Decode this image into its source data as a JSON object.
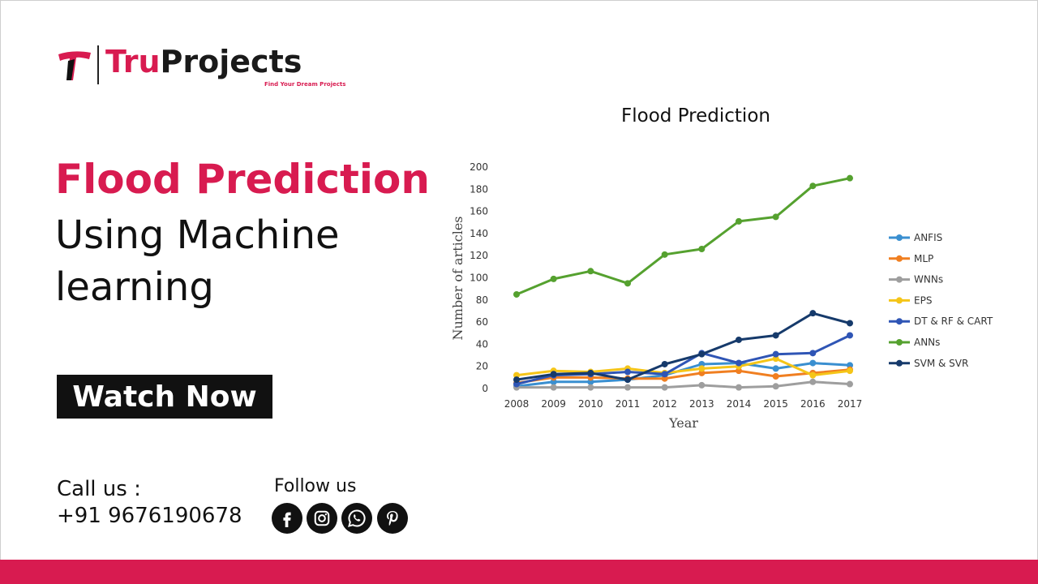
{
  "brand": {
    "name_part1": "Tru",
    "name_part2": "Projects",
    "tagline": "Find Your Dream Projects",
    "accent_color": "#d81b50"
  },
  "headline": {
    "line1": "Flood Prediction",
    "line2": "Using Machine",
    "line3": "learning"
  },
  "cta": {
    "label": "Watch Now"
  },
  "contact": {
    "call_label": "Call us :",
    "phone": "+91 9676190678",
    "follow_label": "Follow us",
    "social_icons": [
      "facebook-icon",
      "instagram-icon",
      "whatsapp-icon",
      "pinterest-icon"
    ]
  },
  "chart_data": {
    "type": "line",
    "title": "Flood Prediction",
    "xlabel": "Year",
    "ylabel": "Number of articles",
    "ylim": [
      0,
      200
    ],
    "yticks": [
      0,
      20,
      40,
      60,
      80,
      100,
      120,
      140,
      160,
      180,
      200
    ],
    "x": [
      "2008",
      "2009",
      "2010",
      "2011",
      "2012",
      "2013",
      "2014",
      "2015",
      "2016",
      "2017"
    ],
    "legend_position": "right",
    "grid": false,
    "series": [
      {
        "name": "ANFIS",
        "color": "#3a8fd0",
        "values": [
          2,
          6,
          6,
          8,
          12,
          22,
          23,
          18,
          23,
          21
        ]
      },
      {
        "name": "MLP",
        "color": "#f07f21",
        "values": [
          5,
          10,
          10,
          9,
          9,
          14,
          16,
          11,
          14,
          17
        ]
      },
      {
        "name": "WNNs",
        "color": "#9e9e9e",
        "values": [
          1,
          1,
          1,
          1,
          1,
          3,
          1,
          2,
          6,
          4
        ]
      },
      {
        "name": "EPS",
        "color": "#f5c518",
        "values": [
          12,
          16,
          15,
          18,
          14,
          18,
          20,
          27,
          12,
          16
        ]
      },
      {
        "name": "DT & RF & CART",
        "color": "#2f55b5",
        "values": [
          4,
          12,
          13,
          15,
          13,
          32,
          23,
          31,
          32,
          48
        ]
      },
      {
        "name": "ANNs",
        "color": "#55a12f",
        "values": [
          85,
          99,
          106,
          95,
          121,
          126,
          151,
          155,
          183,
          190
        ]
      },
      {
        "name": "SVM & SVR",
        "color": "#163a6b",
        "values": [
          8,
          13,
          14,
          8,
          22,
          31,
          44,
          48,
          68,
          59
        ]
      }
    ]
  }
}
